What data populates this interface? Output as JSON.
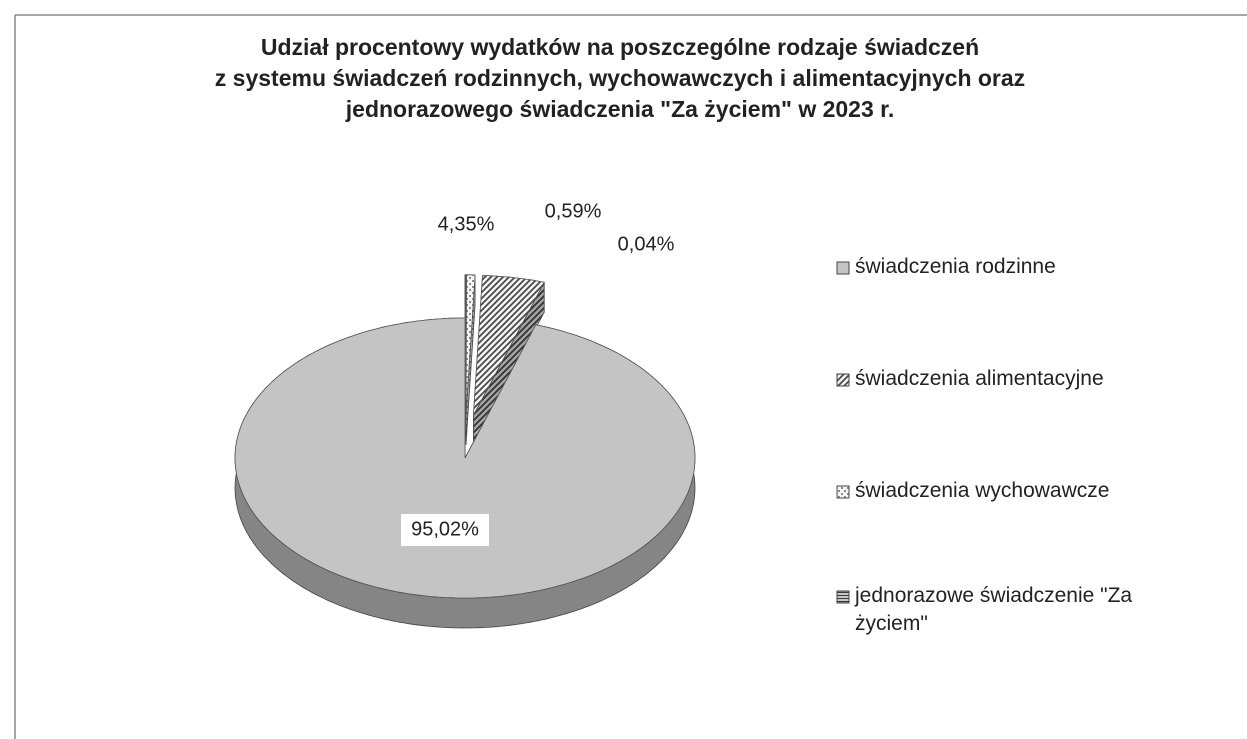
{
  "chart_data": {
    "type": "pie",
    "title": [
      "Udział procentowy wydatków na poszczególne rodzaje świadczeń",
      "z systemu świadczeń rodzinnych, wychowawczych i alimentacyjnych oraz",
      "jednorazowego świadczenia \"Za życiem\" w 2023 r."
    ],
    "categories": [
      "świadczenia rodzinne",
      "świadczenia alimentacyjne",
      "świadczenia wychowawcze",
      "jednorazowe świadczenie \"Za życiem\""
    ],
    "values": [
      95.02,
      4.35,
      0.59,
      0.04
    ],
    "value_labels": [
      "95,02%",
      "4,35%",
      "0,59%",
      "0,04%"
    ],
    "colors": [
      "#c4c4c4",
      "#4a4a4a",
      "#8a8a8a",
      "#3a3a3a"
    ],
    "patterns": [
      "solid",
      "diagonal",
      "dotted",
      "horizontal"
    ],
    "legend": "right"
  }
}
